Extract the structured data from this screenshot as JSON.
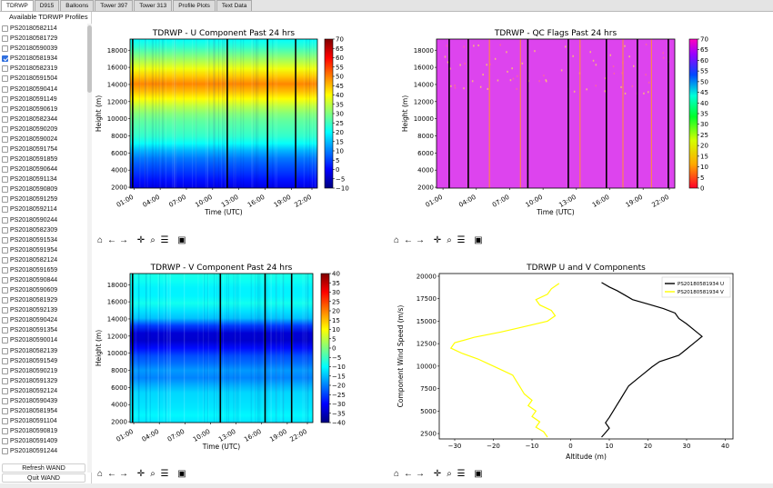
{
  "tabs": [
    {
      "label": "TDRWP",
      "active": true
    },
    {
      "label": "D915"
    },
    {
      "label": "Balloons"
    },
    {
      "label": "Tower 397"
    },
    {
      "label": "Tower 313"
    },
    {
      "label": "Profile Plots"
    },
    {
      "label": "Text Data"
    }
  ],
  "sidebar": {
    "title": "Available TDRWP Profiles",
    "checked_index": 3,
    "items": [
      "PS20180582114",
      "PS20180581729",
      "PS20180590039",
      "PS20180581934",
      "PS20180582319",
      "PS20180591504",
      "PS20180590414",
      "PS20180591149",
      "PS20180590619",
      "PS20180582344",
      "PS20180590209",
      "PS20180590024",
      "PS20180591754",
      "PS20180591859",
      "PS20180590644",
      "PS20180591134",
      "PS20180590809",
      "PS20180591259",
      "PS20180592114",
      "PS20180590244",
      "PS20180582309",
      "PS20180591534",
      "PS20180591954",
      "PS20180582124",
      "PS20180591659",
      "PS20180590844",
      "PS20180590609",
      "PS20180581929",
      "PS20180592139",
      "PS20180590424",
      "PS20180591354",
      "PS20180590014",
      "PS20180582139",
      "PS20180591549",
      "PS20180590219",
      "PS20180591329",
      "PS20180592124",
      "PS20180590439",
      "PS20180581954",
      "PS20180591104",
      "PS20180590819",
      "PS20180591409",
      "PS20180591244"
    ],
    "refresh_label": "Refresh WAND",
    "quit_label": "Quit WAND"
  },
  "toolbar_icons": [
    "home-icon",
    "back-arrow-icon",
    "forward-arrow-icon",
    "pan-icon",
    "zoom-icon",
    "configure-subplots-icon",
    "save-icon"
  ],
  "chart_data": [
    {
      "type": "heatmap",
      "title": "TDRWP - U Component Past 24 hrs",
      "xlabel": "Time (UTC)",
      "ylabel": "Height (m)",
      "xticks": [
        "01:00",
        "04:00",
        "07:00",
        "10:00",
        "13:00",
        "16:00",
        "19:00",
        "22:00"
      ],
      "yticks": [
        2000,
        4000,
        6000,
        8000,
        10000,
        12000,
        14000,
        16000,
        18000
      ],
      "ylim": [
        1900,
        19300
      ],
      "colorbar": {
        "min": -10,
        "max": 70,
        "ticks": [
          -10,
          -5,
          0,
          5,
          10,
          15,
          20,
          25,
          30,
          35,
          40,
          45,
          50,
          55,
          60,
          65,
          70
        ],
        "colormap": "jet"
      },
      "profile": [
        [
          2000,
          -2
        ],
        [
          3000,
          2
        ],
        [
          4000,
          5
        ],
        [
          5000,
          8
        ],
        [
          6000,
          12
        ],
        [
          7000,
          20
        ],
        [
          8000,
          24
        ],
        [
          9000,
          26
        ],
        [
          10000,
          28
        ],
        [
          11000,
          32
        ],
        [
          12000,
          38
        ],
        [
          13000,
          44
        ],
        [
          14000,
          50
        ],
        [
          15000,
          44
        ],
        [
          16000,
          38
        ],
        [
          17000,
          32
        ],
        [
          18000,
          26
        ],
        [
          19000,
          20
        ]
      ]
    },
    {
      "type": "heatmap",
      "title": "TDRWP - QC Flags Past 24 hrs",
      "xlabel": "Time (UTC)",
      "ylabel": "Height (m)",
      "xticks": [
        "01:00",
        "04:00",
        "07:00",
        "10:00",
        "13:00",
        "16:00",
        "19:00",
        "22:00"
      ],
      "yticks": [
        2000,
        4000,
        6000,
        8000,
        10000,
        12000,
        14000,
        16000,
        18000
      ],
      "ylim": [
        1900,
        19300
      ],
      "colorbar": {
        "min": 0,
        "max": 70,
        "ticks": [
          0,
          5,
          10,
          15,
          20,
          25,
          30,
          35,
          40,
          45,
          50,
          55,
          60,
          65,
          70
        ],
        "colormap": "gist_rainbow"
      },
      "dominant_value": 65
    },
    {
      "type": "heatmap",
      "title": "TDRWP - V Component Past 24 hrs",
      "xlabel": "Time (UTC)",
      "ylabel": "Height (m)",
      "xticks": [
        "01:00",
        "04:00",
        "07:00",
        "10:00",
        "13:00",
        "16:00",
        "19:00",
        "22:00"
      ],
      "yticks": [
        2000,
        4000,
        6000,
        8000,
        10000,
        12000,
        14000,
        16000,
        18000
      ],
      "ylim": [
        1900,
        19300
      ],
      "colorbar": {
        "min": -40,
        "max": 40,
        "ticks": [
          -40,
          -35,
          -30,
          -25,
          -20,
          -15,
          -10,
          -5,
          0,
          5,
          10,
          15,
          20,
          25,
          30,
          35,
          40
        ],
        "colormap": "jet"
      },
      "profile": [
        [
          2000,
          -12
        ],
        [
          3000,
          -10
        ],
        [
          4000,
          -13
        ],
        [
          5000,
          -12
        ],
        [
          6000,
          -15
        ],
        [
          7000,
          -20
        ],
        [
          8000,
          -18
        ],
        [
          9000,
          -22
        ],
        [
          10000,
          -25
        ],
        [
          11000,
          -32
        ],
        [
          12000,
          -36
        ],
        [
          13000,
          -28
        ],
        [
          14000,
          -15
        ],
        [
          15000,
          -12
        ],
        [
          16000,
          -8
        ],
        [
          17000,
          -12
        ],
        [
          18000,
          -10
        ],
        [
          19000,
          -8
        ]
      ]
    },
    {
      "type": "line",
      "title": "TDRWP U and V Components",
      "xlabel": "Altitude (m)",
      "ylabel": "Component Wind Speed (m/s)",
      "xlim": [
        -34,
        42
      ],
      "ylim": [
        1900,
        20300
      ],
      "xticks": [
        -30,
        -20,
        -10,
        0,
        10,
        20,
        30,
        40
      ],
      "yticks": [
        2500,
        5000,
        7500,
        10000,
        12500,
        15000,
        17500,
        20000
      ],
      "legend_position": "top-right",
      "series": [
        {
          "name": "PS20180581934 U",
          "color": "#000000",
          "points": [
            [
              8,
              2100
            ],
            [
              9,
              2600
            ],
            [
              10,
              3100
            ],
            [
              9,
              3700
            ],
            [
              10,
              4300
            ],
            [
              11,
              5000
            ],
            [
              12,
              5700
            ],
            [
              13,
              6400
            ],
            [
              14,
              7100
            ],
            [
              15,
              7800
            ],
            [
              17,
              8500
            ],
            [
              19,
              9200
            ],
            [
              21,
              9900
            ],
            [
              23,
              10500
            ],
            [
              28,
              11200
            ],
            [
              30,
              11900
            ],
            [
              32,
              12600
            ],
            [
              34,
              13300
            ],
            [
              32,
              14000
            ],
            [
              30,
              14700
            ],
            [
              28,
              15300
            ],
            [
              27,
              15900
            ],
            [
              24,
              16400
            ],
            [
              20,
              16900
            ],
            [
              16,
              17400
            ],
            [
              14,
              17900
            ],
            [
              12,
              18400
            ],
            [
              10,
              18800
            ],
            [
              8,
              19300
            ]
          ]
        },
        {
          "name": "PS20180581934 V",
          "color": "#ffff00",
          "points": [
            [
              -6,
              2100
            ],
            [
              -7,
              2700
            ],
            [
              -9,
              3200
            ],
            [
              -8,
              3800
            ],
            [
              -10,
              4400
            ],
            [
              -9,
              5000
            ],
            [
              -11,
              5600
            ],
            [
              -10,
              6200
            ],
            [
              -12,
              6900
            ],
            [
              -13,
              7600
            ],
            [
              -14,
              8300
            ],
            [
              -15,
              9000
            ],
            [
              -18,
              9600
            ],
            [
              -21,
              10200
            ],
            [
              -24,
              10800
            ],
            [
              -28,
              11400
            ],
            [
              -31,
              12000
            ],
            [
              -30,
              12600
            ],
            [
              -25,
              13200
            ],
            [
              -18,
              13800
            ],
            [
              -12,
              14400
            ],
            [
              -6,
              15000
            ],
            [
              -4,
              15600
            ],
            [
              -5,
              16200
            ],
            [
              -8,
              16800
            ],
            [
              -9,
              17400
            ],
            [
              -6,
              18000
            ],
            [
              -5,
              18600
            ],
            [
              -3,
              19200
            ]
          ]
        }
      ]
    }
  ]
}
